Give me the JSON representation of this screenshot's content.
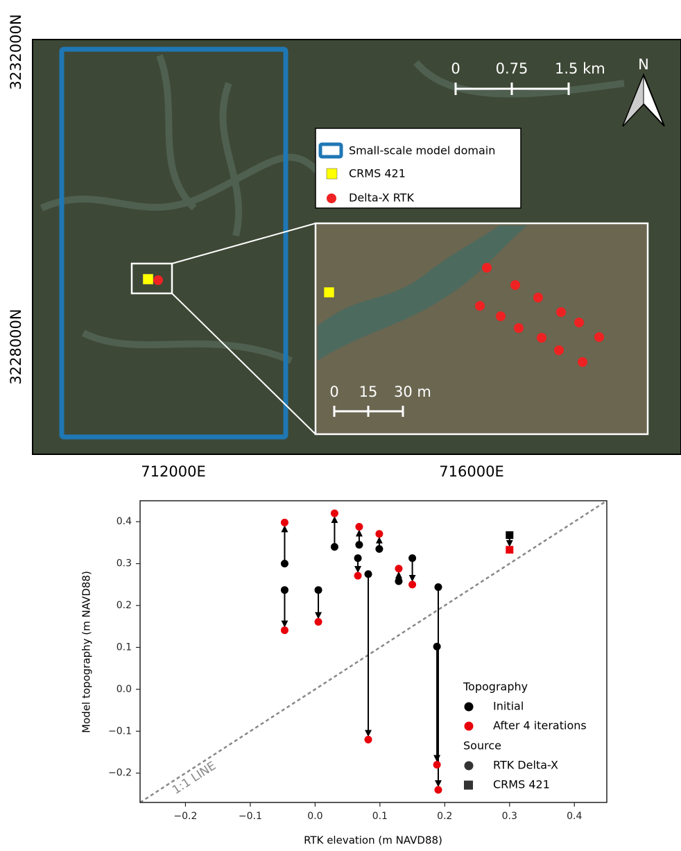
{
  "map": {
    "y_labels": [
      "3232000N",
      "3228000N"
    ],
    "x_labels": [
      "712000E",
      "716000E"
    ],
    "scale_bar": [
      "0",
      "0.75",
      "1.5 km"
    ],
    "north": "N",
    "legend": [
      "Small-scale model domain",
      "CRMS 421",
      "Delta-X RTK"
    ],
    "inset_scale_bar": [
      "0",
      "15",
      "30 m"
    ]
  },
  "chart_data": {
    "type": "scatter",
    "x_label": "RTK elevation (m NAVD88)",
    "y_label": "Model topography (m NAVD88)",
    "annotation": "1:1 LINE",
    "x": [
      -0.047,
      -0.047,
      0.005,
      0.03,
      0.068,
      0.066,
      0.082,
      0.099,
      0.129,
      0.15,
      0.19,
      0.188,
      0.3
    ],
    "markers": [
      "circle",
      "circle",
      "circle",
      "circle",
      "circle",
      "circle",
      "circle",
      "circle",
      "circle",
      "circle",
      "circle",
      "circle",
      "square"
    ],
    "series": [
      {
        "name": "Initial",
        "color": "#000000",
        "values": [
          0.3,
          0.237,
          0.237,
          0.34,
          0.345,
          0.313,
          0.275,
          0.335,
          0.258,
          0.313,
          0.244,
          0.102,
          0.368
        ]
      },
      {
        "name": "After 4 iterations",
        "color": "#e8000b",
        "values": [
          0.398,
          0.141,
          0.161,
          0.42,
          0.388,
          0.271,
          -0.12,
          0.371,
          0.288,
          0.25,
          -0.24,
          -0.18,
          0.333
        ]
      }
    ],
    "legend_title": "Topography",
    "source_legend": {
      "title": "Source",
      "entries": [
        {
          "name": "RTK Delta-X",
          "marker": "circle"
        },
        {
          "name": "CRMS 421",
          "marker": "square"
        }
      ]
    },
    "xlim": [
      -0.27,
      0.45
    ],
    "ylim": [
      -0.27,
      0.45
    ],
    "xticks": [
      {
        "value": -0.2,
        "label": "−0.2"
      },
      {
        "value": -0.1,
        "label": "−0.1"
      },
      {
        "value": 0,
        "label": "0.0"
      },
      0.1,
      0.2,
      0.3,
      0.4
    ],
    "yticks": [
      {
        "value": -0.2,
        "label": "−0.2"
      },
      {
        "value": -0.1,
        "label": "−0.1"
      },
      {
        "value": 0,
        "label": "0.0"
      },
      0.1,
      0.2,
      0.3,
      0.4
    ]
  }
}
